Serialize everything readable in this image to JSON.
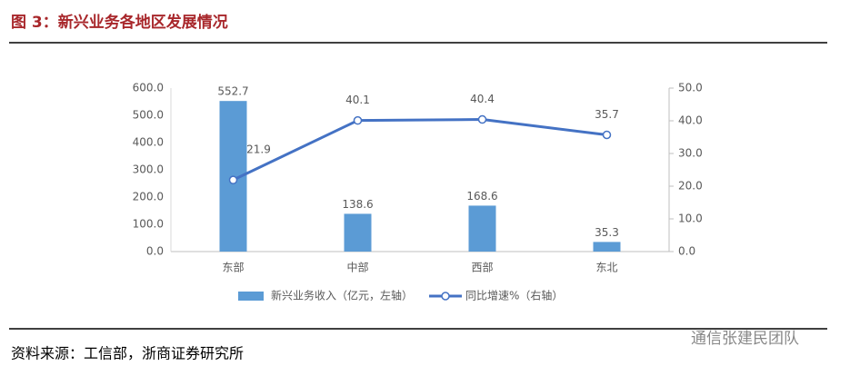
{
  "chart_data": {
    "type": "bar",
    "title": "图 3：新兴业务各地区发展情况",
    "categories": [
      "东部",
      "中部",
      "西部",
      "东北"
    ],
    "series": [
      {
        "name": "新兴业务收入（亿元，左轴）",
        "type": "bar",
        "color": "#5b9bd5",
        "values": [
          552.7,
          138.6,
          168.6,
          35.3
        ]
      },
      {
        "name": "同比增速%（右轴）",
        "type": "line",
        "axis": "y2",
        "color": "#4472c4",
        "values": [
          21.9,
          40.1,
          40.4,
          35.7
        ]
      }
    ],
    "ylim": [
      0,
      600
    ],
    "yticks": [
      {
        "value": 0,
        "label": "0.0"
      },
      {
        "value": 100,
        "label": "100.0"
      },
      {
        "value": 200,
        "label": "200.0"
      },
      {
        "value": 300,
        "label": "300.0"
      },
      {
        "value": 400,
        "label": "400.0"
      },
      {
        "value": 500,
        "label": "500.0"
      },
      {
        "value": 600,
        "label": "600.0"
      }
    ],
    "y2lim": [
      0,
      50
    ],
    "y2ticks": [
      {
        "value": 0,
        "label": "0.0"
      },
      {
        "value": 10,
        "label": "10.0"
      },
      {
        "value": 20,
        "label": "20.0"
      },
      {
        "value": 30,
        "label": "30.0"
      },
      {
        "value": 40,
        "label": "40.0"
      },
      {
        "value": 50,
        "label": "50.0"
      }
    ],
    "legend": "bottom"
  },
  "source": "资料来源：工信部，浙商证券研究所",
  "watermark": "通信张建民团队"
}
